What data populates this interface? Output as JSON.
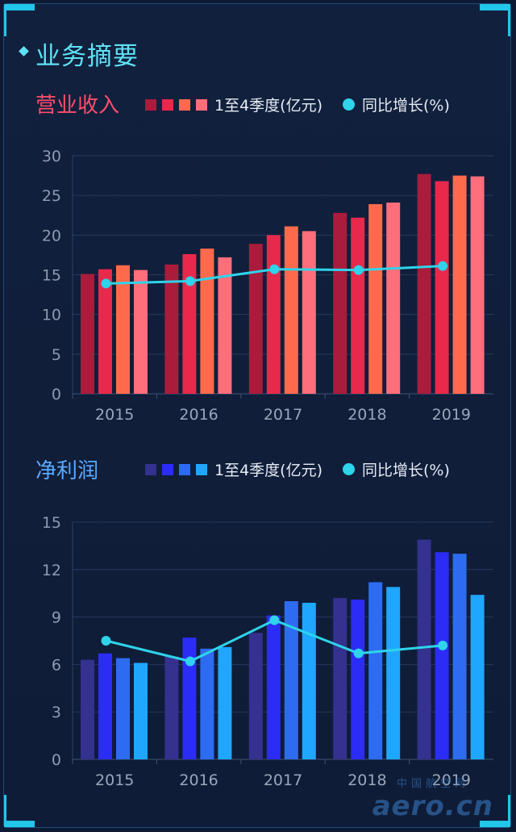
{
  "page": {
    "title": "业务摘要"
  },
  "chart_data": [
    {
      "type": "bar",
      "section_title": "营业收入",
      "legend_bar_label": "1至4季度(亿元)",
      "legend_line_label": "同比增长(%)",
      "categories": [
        "2015",
        "2016",
        "2017",
        "2018",
        "2019"
      ],
      "series": [
        {
          "values": [
            15.1,
            16.3,
            18.9,
            22.8,
            27.7
          ]
        },
        {
          "values": [
            15.7,
            17.6,
            20.0,
            22.2,
            26.8
          ]
        },
        {
          "values": [
            16.2,
            18.3,
            21.1,
            23.9,
            27.5
          ]
        },
        {
          "values": [
            15.6,
            17.2,
            20.5,
            24.1,
            27.4
          ]
        }
      ],
      "line": {
        "values": [
          13.9,
          14.2,
          15.7,
          15.6,
          16.1
        ]
      },
      "ylim": [
        0,
        30
      ],
      "yticks": [
        0,
        5,
        10,
        15,
        20,
        25,
        30
      ],
      "grid": true,
      "colors": {
        "bars": [
          "#a91c3c",
          "#e8294c",
          "#ff6a4d",
          "#ff6e7a"
        ],
        "line": "#2fd3ea",
        "title": "#ff4d6d"
      }
    },
    {
      "type": "bar",
      "section_title": "净利润",
      "legend_bar_label": "1至4季度(亿元)",
      "legend_line_label": "同比增长(%)",
      "categories": [
        "2015",
        "2016",
        "2017",
        "2018",
        "2019"
      ],
      "series": [
        {
          "values": [
            6.3,
            6.5,
            8.0,
            10.2,
            13.9
          ]
        },
        {
          "values": [
            6.7,
            7.7,
            9.1,
            10.1,
            13.1
          ]
        },
        {
          "values": [
            6.4,
            7.0,
            10.0,
            11.2,
            13.0
          ]
        },
        {
          "values": [
            6.1,
            7.1,
            9.9,
            10.9,
            10.4
          ]
        }
      ],
      "line": {
        "values": [
          7.5,
          6.2,
          8.8,
          6.7,
          7.2
        ]
      },
      "ylim": [
        0,
        15
      ],
      "yticks": [
        0,
        3,
        6,
        9,
        12,
        15
      ],
      "grid": true,
      "colors": {
        "bars": [
          "#34318f",
          "#2b2cf5",
          "#2d6cf0",
          "#1fa7ff"
        ],
        "line": "#2fd3ea",
        "title": "#59a9ff"
      }
    }
  ],
  "watermark": {
    "cn": "中国航空网",
    "en": "aero.cn"
  }
}
